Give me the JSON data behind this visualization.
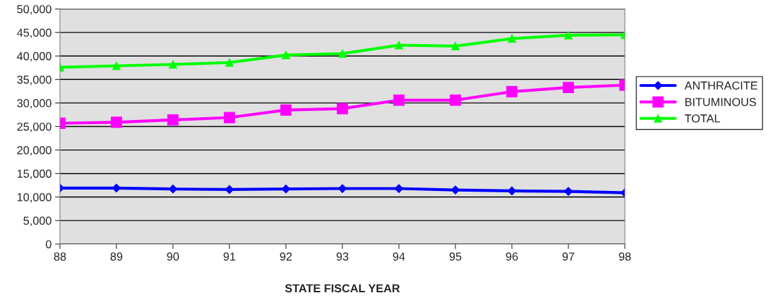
{
  "chart_data": {
    "type": "line",
    "xlabel": "STATE FISCAL YEAR",
    "categories": [
      "88",
      "89",
      "90",
      "91",
      "92",
      "93",
      "94",
      "95",
      "96",
      "97",
      "98"
    ],
    "series": [
      {
        "name": "ANTHRACITE",
        "color": "#0000ff",
        "marker": "diamond",
        "values": [
          11900,
          11900,
          11700,
          11600,
          11700,
          11800,
          11800,
          11500,
          11300,
          11200,
          10900
        ]
      },
      {
        "name": "BITUMINOUS",
        "color": "#ff00ff",
        "marker": "square",
        "values": [
          25700,
          25900,
          26400,
          26900,
          28500,
          28800,
          30600,
          30600,
          32400,
          33300,
          33800
        ]
      },
      {
        "name": "TOTAL",
        "color": "#00ff00",
        "marker": "triangle",
        "values": [
          37600,
          37900,
          38200,
          38600,
          40200,
          40500,
          42300,
          42100,
          43700,
          44400,
          44500
        ]
      }
    ],
    "ylim": [
      0,
      50000
    ],
    "yticks": [
      {
        "value": 0,
        "label": "0"
      },
      {
        "value": 5000,
        "label": "5,000"
      },
      {
        "value": 10000,
        "label": "10,000"
      },
      {
        "value": 15000,
        "label": "15,000"
      },
      {
        "value": 20000,
        "label": "20,000"
      },
      {
        "value": 25000,
        "label": "25,000"
      },
      {
        "value": 30000,
        "label": "30,000"
      },
      {
        "value": 35000,
        "label": "35,000"
      },
      {
        "value": 40000,
        "label": "40,000"
      },
      {
        "value": 45000,
        "label": "45,000"
      },
      {
        "value": 50000,
        "label": "50,000"
      }
    ],
    "grid": "y",
    "legend": "right"
  }
}
